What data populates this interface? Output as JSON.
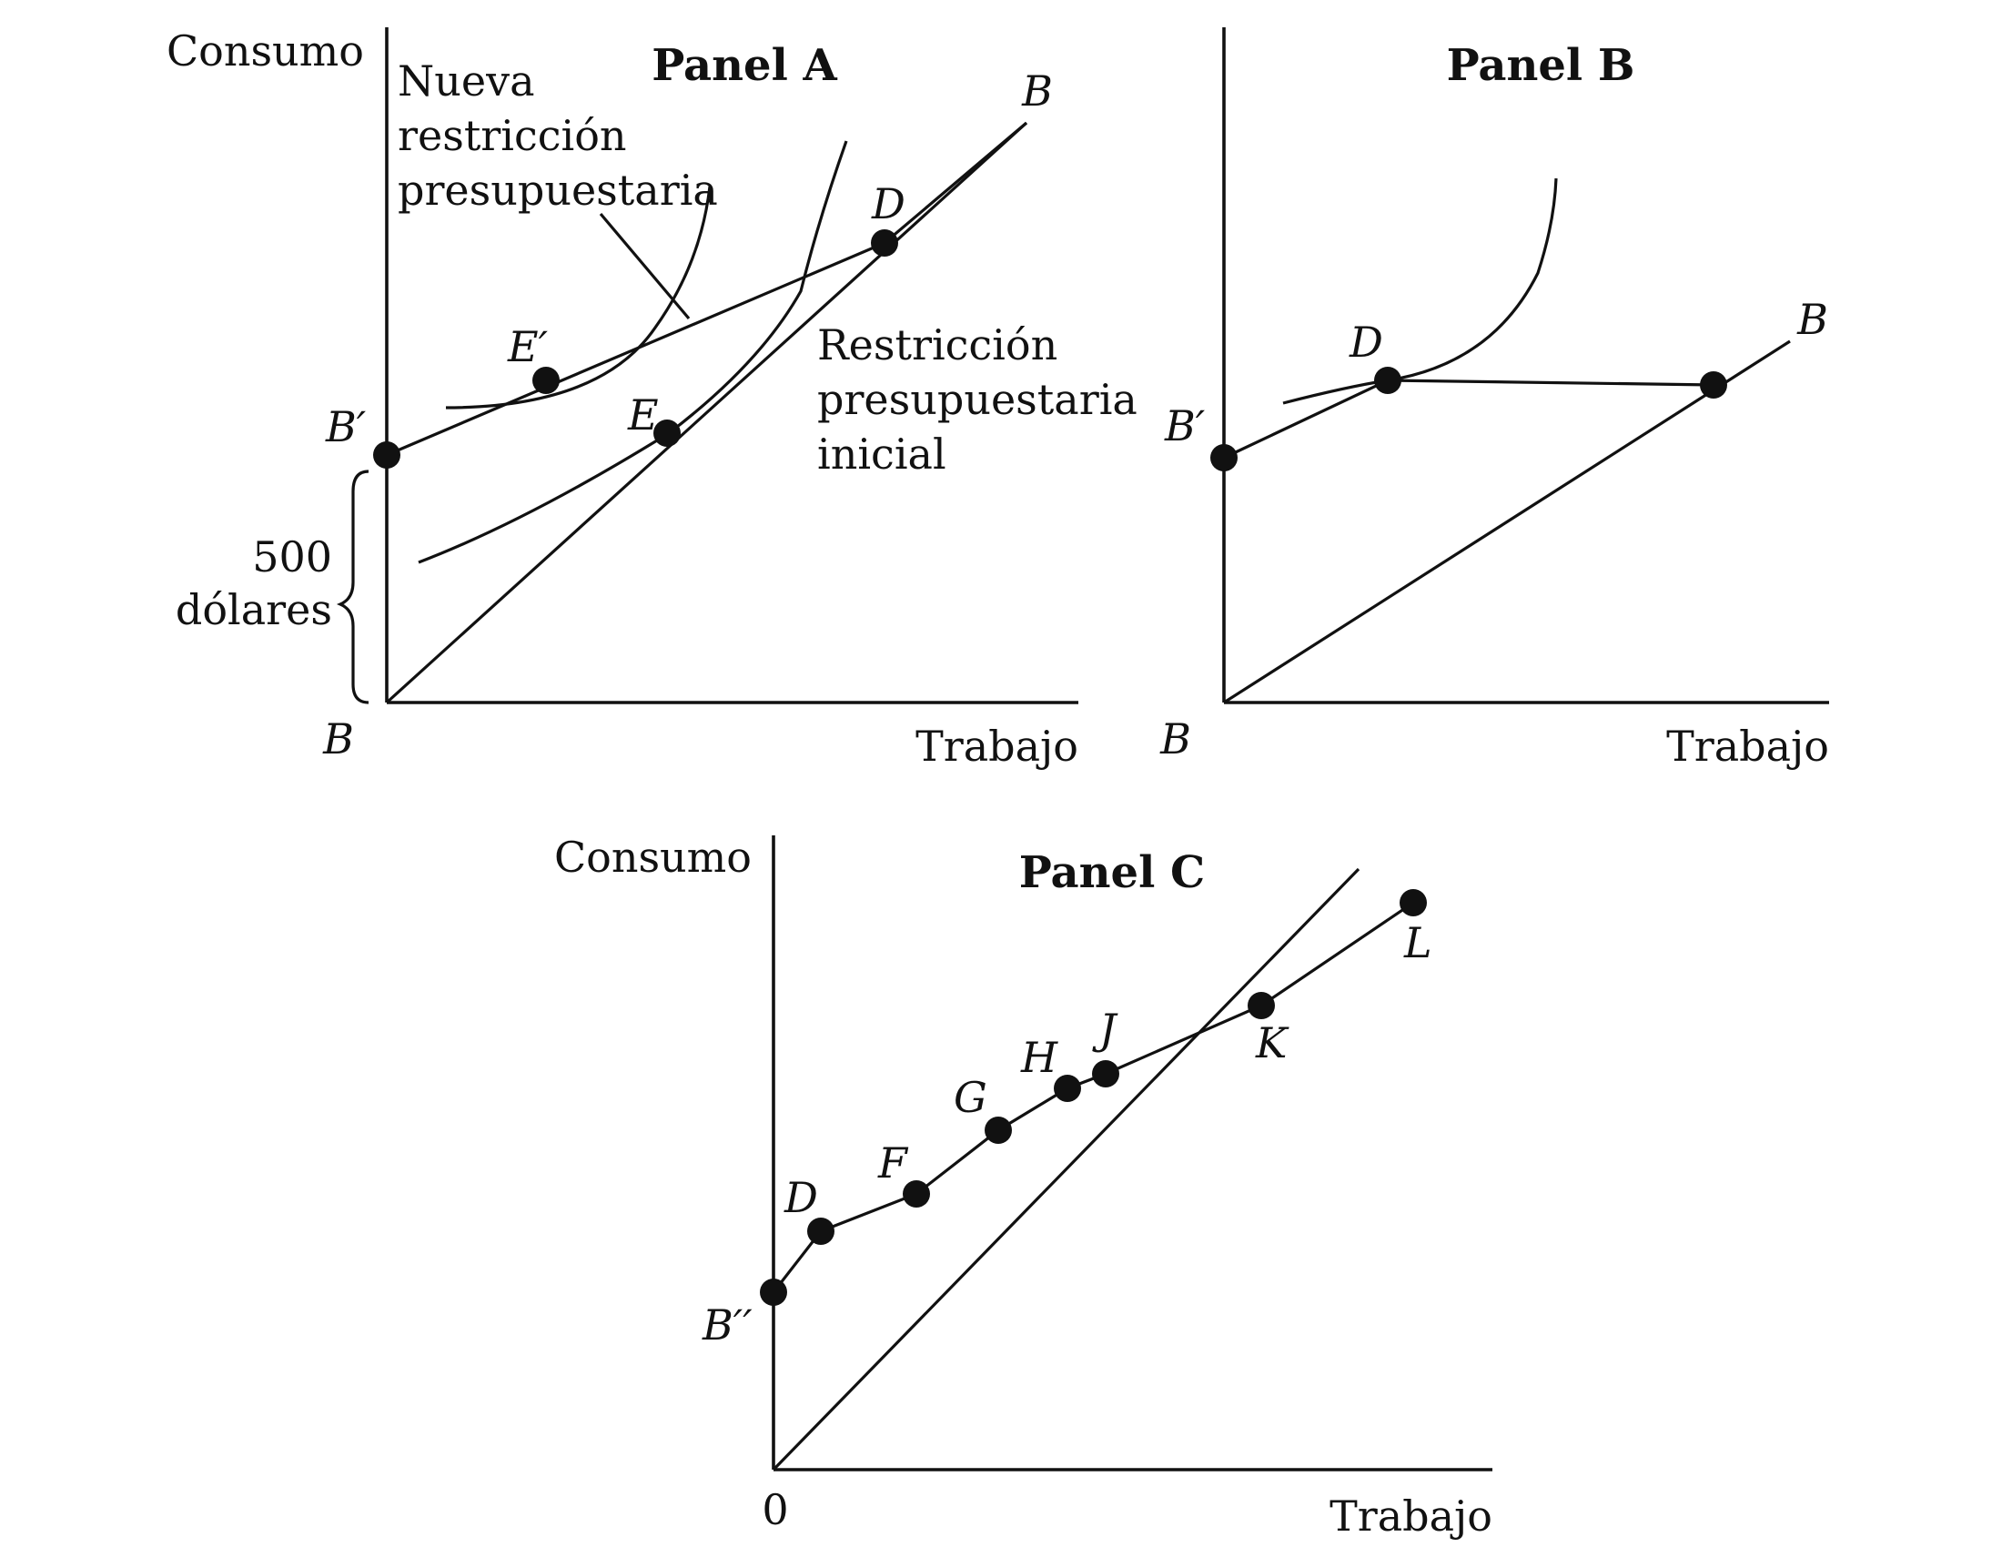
{
  "panel_a": {
    "title": "Panel A",
    "ylabel": "Consumo",
    "xlabel": "Trabajo",
    "origin_label": "B",
    "end_label": "B",
    "brace_label_line1": "500",
    "brace_label_line2": "dólares",
    "new_constraint_line1": "Nueva",
    "new_constraint_line2": "restricción",
    "new_constraint_line3": "presupuestaria",
    "initial_constraint_line1": "Restricción",
    "initial_constraint_line2": "presupuestaria",
    "initial_constraint_line3": "inicial",
    "points": {
      "b_prime": "B′",
      "e_prime": "E′",
      "e": "E",
      "d": "D"
    }
  },
  "panel_b": {
    "title": "Panel B",
    "xlabel": "Trabajo",
    "origin_label": "B",
    "end_label": "B",
    "points": {
      "b_prime": "B′",
      "d": "D"
    }
  },
  "panel_c": {
    "title": "Panel C",
    "ylabel": "Consumo",
    "xlabel": "Trabajo",
    "origin_label": "0",
    "points": {
      "b_double_prime": "B′′",
      "d": "D",
      "f": "F",
      "g": "G",
      "h": "H",
      "j": "J",
      "k": "K",
      "l": "L"
    }
  }
}
